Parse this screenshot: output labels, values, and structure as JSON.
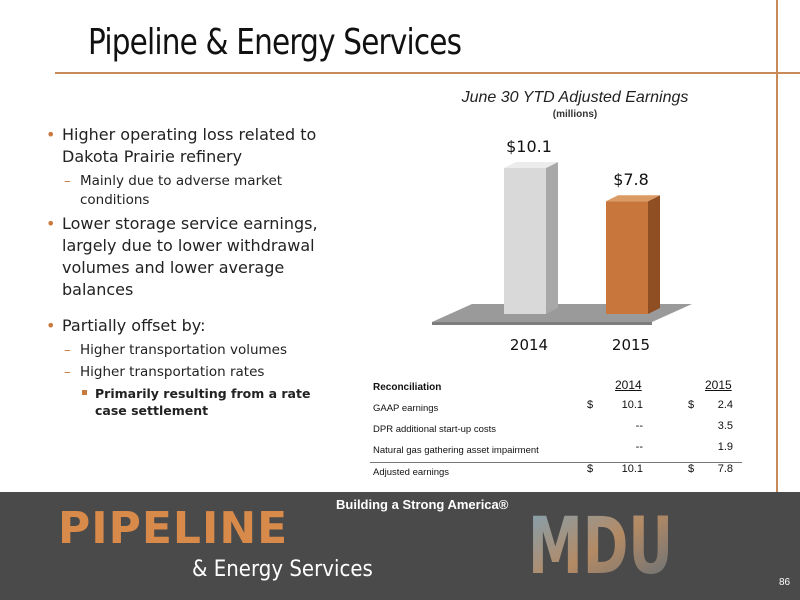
{
  "slide": {
    "title": "Pipeline & Energy Services",
    "page_number": "86"
  },
  "bullets": [
    {
      "level": 1,
      "text": "Higher operating loss related to Dakota Prairie refinery"
    },
    {
      "level": 2,
      "text": "Mainly due to adverse market conditions"
    },
    {
      "level": 1,
      "text": "Lower storage service earnings, largely due to lower withdrawal volumes and lower average balances"
    },
    {
      "level": 1,
      "text": "Partially offset by:"
    },
    {
      "level": 2,
      "text": "Higher transportation volumes"
    },
    {
      "level": 2,
      "text": "Higher transportation rates"
    },
    {
      "level": 3,
      "text": "Primarily resulting from a rate case settlement"
    }
  ],
  "chart_data": {
    "type": "bar",
    "title": "June 30 YTD Adjusted Earnings",
    "subtitle": "(millions)",
    "categories": [
      "2014",
      "2015"
    ],
    "values": [
      10.1,
      7.8
    ],
    "data_labels": [
      "$10.1",
      "$7.8"
    ],
    "colors": [
      "#d9d9d9",
      "#c8763b"
    ],
    "ylim": [
      0,
      12
    ],
    "grid": false,
    "style": "3d"
  },
  "reconciliation": {
    "heading": "Reconciliation",
    "years": [
      "2014",
      "2015"
    ],
    "rows": [
      {
        "label": "GAAP earnings",
        "cur1": "$",
        "v2014": "10.1",
        "cur2": "$",
        "v2015": "2.4"
      },
      {
        "label": "DPR additional start-up costs",
        "cur1": "",
        "v2014": "--",
        "cur2": "",
        "v2015": "3.5"
      },
      {
        "label": "Natural gas gathering asset impairment",
        "cur1": "",
        "v2014": "--",
        "cur2": "",
        "v2015": "1.9"
      },
      {
        "label": "Adjusted earnings",
        "cur1": "$",
        "v2014": "10.1",
        "cur2": "$",
        "v2015": "7.8"
      }
    ]
  },
  "footer": {
    "tagline": "Building a Strong America®",
    "brand_main": "PIPELINE",
    "brand_sub": "& Energy Services",
    "logo_text": "MDU",
    "brand_color": "#d88a4a",
    "background": "#4a4a4a"
  }
}
